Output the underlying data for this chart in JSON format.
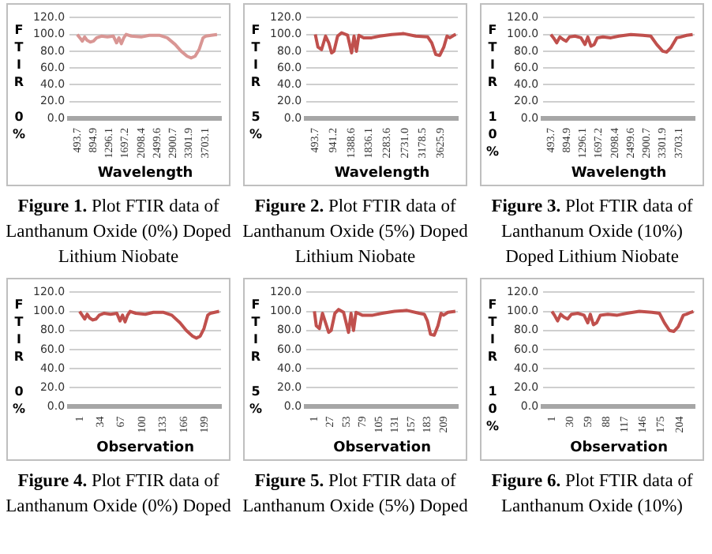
{
  "chart_data": [
    {
      "type": "line",
      "xlabel": "Wavelength",
      "ylabel": "FTIR 0%",
      "x": [
        493.7,
        560,
        620,
        680,
        740,
        820,
        900,
        980,
        1100,
        1250,
        1400,
        1480,
        1540,
        1600,
        1660,
        1720,
        1850,
        2100,
        2300,
        2550,
        2750,
        2950,
        3100,
        3250,
        3350,
        3450,
        3550,
        3650,
        3720,
        3850,
        4000
      ],
      "series": [
        {
          "color": "#d99694",
          "values": [
            100,
            96,
            92,
            97,
            93,
            91,
            92,
            96,
            98,
            97,
            98,
            90,
            96,
            89,
            96,
            100,
            98,
            97,
            99,
            99,
            96,
            88,
            80,
            74,
            72,
            74,
            82,
            96,
            98,
            99,
            100
          ]
        }
      ],
      "xlim": [
        300,
        4100
      ],
      "xticks": [
        {
          "value": 493.7,
          "label": "493.7"
        },
        {
          "value": 894.9,
          "label": "894.9"
        },
        {
          "value": 1296.1,
          "label": "1296.1"
        },
        {
          "value": 1697.2,
          "label": "1697.2"
        },
        {
          "value": 2098.4,
          "label": "2098.4"
        },
        {
          "value": 2499.6,
          "label": "2499.6"
        },
        {
          "value": 2900.7,
          "label": "2900.7"
        },
        {
          "value": 3301.9,
          "label": "3301.9"
        },
        {
          "value": 3703.1,
          "label": "3703.1"
        }
      ],
      "ylim": [
        0,
        120
      ],
      "yticks": [
        {
          "value": 0,
          "label": "0.0"
        },
        {
          "value": 20,
          "label": "20.0"
        },
        {
          "value": 40,
          "label": "40.0"
        },
        {
          "value": 60,
          "label": "60.0"
        },
        {
          "value": 80,
          "label": "80.0"
        },
        {
          "value": 100,
          "label": "100.0"
        },
        {
          "value": 120,
          "label": "120.0"
        }
      ],
      "grid": "y",
      "marker": "none",
      "line_style": "solid",
      "annotations": [
        "Figure 1.",
        "Plot FTIR data of Lanthanum Oxide (0%) Doped Lithium Niobate"
      ]
    },
    {
      "type": "line",
      "xlabel": "Wavelength",
      "ylabel": "FTIR 5%",
      "x": [
        493.7,
        560,
        650,
        750,
        830,
        900,
        960,
        1050,
        1150,
        1300,
        1400,
        1460,
        1520,
        1580,
        1700,
        1900,
        2100,
        2400,
        2700,
        3000,
        3300,
        3400,
        3500,
        3600,
        3700,
        3780,
        3850,
        3950,
        4000
      ],
      "series": [
        {
          "color": "#c0504d",
          "values": [
            100,
            85,
            82,
            98,
            90,
            78,
            80,
            98,
            102,
            99,
            78,
            98,
            80,
            99,
            96,
            96,
            98,
            100,
            101,
            98,
            97,
            90,
            76,
            75,
            85,
            98,
            96,
            99,
            100
          ]
        }
      ],
      "xlim": [
        270,
        4050
      ],
      "xticks": [
        {
          "value": 493.7,
          "label": "493.7"
        },
        {
          "value": 941.2,
          "label": "941.2"
        },
        {
          "value": 1388.6,
          "label": "1388.6"
        },
        {
          "value": 1836.1,
          "label": "1836.1"
        },
        {
          "value": 2283.6,
          "label": "2283.6"
        },
        {
          "value": 2731.0,
          "label": "2731.0"
        },
        {
          "value": 3178.5,
          "label": "3178.5"
        },
        {
          "value": 3625.9,
          "label": "3625.9"
        }
      ],
      "ylim": [
        0,
        120
      ],
      "yticks": [
        {
          "value": 0,
          "label": "0.0"
        },
        {
          "value": 20,
          "label": "20.0"
        },
        {
          "value": 40,
          "label": "40.0"
        },
        {
          "value": 60,
          "label": "60.0"
        },
        {
          "value": 80,
          "label": "80.0"
        },
        {
          "value": 100,
          "label": "100.0"
        },
        {
          "value": 120,
          "label": "120.0"
        }
      ],
      "grid": "y",
      "marker": "none",
      "line_style": "solid",
      "annotations": [
        "Figure 2.",
        "Plot FTIR data of Lanthanum Oxide (5%) Doped Lithium Niobate"
      ]
    },
    {
      "type": "line",
      "xlabel": "Wavelength",
      "ylabel": "FTIR 10%",
      "x": [
        493.7,
        560,
        640,
        720,
        800,
        880,
        960,
        1100,
        1250,
        1350,
        1420,
        1500,
        1580,
        1660,
        1800,
        2000,
        2200,
        2500,
        2800,
        3000,
        3150,
        3300,
        3400,
        3500,
        3650,
        3750,
        3900,
        4050
      ],
      "series": [
        {
          "color": "#c0504d",
          "values": [
            100,
            96,
            90,
            97,
            94,
            92,
            97,
            98,
            96,
            88,
            97,
            86,
            88,
            96,
            97,
            96,
            98,
            100,
            99,
            98,
            88,
            80,
            79,
            84,
            96,
            97,
            99,
            100
          ]
        }
      ],
      "xlim": [
        300,
        4100
      ],
      "xticks": [
        {
          "value": 493.7,
          "label": "493.7"
        },
        {
          "value": 894.9,
          "label": "894.9"
        },
        {
          "value": 1296.1,
          "label": "1296.1"
        },
        {
          "value": 1697.2,
          "label": "1697.2"
        },
        {
          "value": 2098.4,
          "label": "2098.4"
        },
        {
          "value": 2499.6,
          "label": "2499.6"
        },
        {
          "value": 2900.7,
          "label": "2900.7"
        },
        {
          "value": 3301.9,
          "label": "3301.9"
        },
        {
          "value": 3703.1,
          "label": "3703.1"
        }
      ],
      "ylim": [
        0,
        120
      ],
      "yticks": [
        {
          "value": 0,
          "label": "0.0"
        },
        {
          "value": 20,
          "label": "20.0"
        },
        {
          "value": 40,
          "label": "40.0"
        },
        {
          "value": 60,
          "label": "60.0"
        },
        {
          "value": 80,
          "label": "80.0"
        },
        {
          "value": 100,
          "label": "100.0"
        },
        {
          "value": 120,
          "label": "120.0"
        }
      ],
      "grid": "y",
      "marker": "none",
      "line_style": "solid",
      "annotations": [
        "Figure 3.",
        "Plot FTIR data of Lanthanum Oxide (10%) Doped Lithium Niobate"
      ]
    },
    {
      "type": "line",
      "xlabel": "Observation",
      "ylabel": "FTIR 0%",
      "x": [
        1,
        5,
        9,
        13,
        17,
        22,
        27,
        32,
        40,
        50,
        60,
        65,
        69,
        73,
        77,
        81,
        90,
        105,
        118,
        134,
        147,
        160,
        170,
        180,
        186,
        192,
        198,
        204,
        208,
        215,
        222
      ],
      "series": [
        {
          "color": "#c0504d",
          "values": [
            100,
            96,
            92,
            97,
            93,
            91,
            92,
            96,
            98,
            97,
            98,
            90,
            96,
            89,
            96,
            100,
            98,
            97,
            99,
            99,
            96,
            88,
            80,
            74,
            72,
            74,
            82,
            96,
            98,
            99,
            100
          ]
        }
      ],
      "xlim": [
        -15,
        225
      ],
      "xticks": [
        1,
        34,
        67,
        100,
        133,
        166,
        199
      ],
      "ylim": [
        0,
        120
      ],
      "yticks": [
        {
          "value": 0,
          "label": "0.0"
        },
        {
          "value": 20,
          "label": "20.0"
        },
        {
          "value": 40,
          "label": "40.0"
        },
        {
          "value": 60,
          "label": "60.0"
        },
        {
          "value": 80,
          "label": "80.0"
        },
        {
          "value": 100,
          "label": "100.0"
        },
        {
          "value": 120,
          "label": "120.0"
        }
      ],
      "grid": "y",
      "marker": "none",
      "line_style": "solid",
      "annotations": [
        "Figure 4.",
        "Plot FTIR data of Lanthanum Oxide (0%) Doped"
      ]
    },
    {
      "type": "line",
      "xlabel": "Observation",
      "ylabel": "FTIR 5%",
      "x": [
        1,
        4,
        9,
        14,
        18,
        24,
        28,
        34,
        40,
        48,
        56,
        60,
        64,
        68,
        78,
        95,
        110,
        130,
        150,
        170,
        178,
        183,
        188,
        194,
        200,
        205,
        209,
        216,
        228
      ],
      "series": [
        {
          "color": "#c0504d",
          "values": [
            100,
            85,
            82,
            98,
            90,
            78,
            80,
            98,
            102,
            99,
            78,
            98,
            80,
            99,
            96,
            96,
            98,
            100,
            101,
            98,
            97,
            90,
            76,
            75,
            85,
            98,
            96,
            99,
            100
          ]
        }
      ],
      "xlim": [
        -12,
        232
      ],
      "xticks": [
        1,
        27,
        53,
        79,
        105,
        131,
        157,
        183,
        209
      ],
      "ylim": [
        0,
        120
      ],
      "yticks": [
        {
          "value": 0,
          "label": "0.0"
        },
        {
          "value": 20,
          "label": "20.0"
        },
        {
          "value": 40,
          "label": "40.0"
        },
        {
          "value": 60,
          "label": "60.0"
        },
        {
          "value": 80,
          "label": "80.0"
        },
        {
          "value": 100,
          "label": "100.0"
        },
        {
          "value": 120,
          "label": "120.0"
        }
      ],
      "grid": "y",
      "marker": "none",
      "line_style": "solid",
      "annotations": [
        "Figure 5.",
        "Plot FTIR data of Lanthanum Oxide (5%) Doped"
      ]
    },
    {
      "type": "line",
      "xlabel": "Observation",
      "ylabel": "FTIR 10%",
      "x": [
        1,
        5,
        10,
        15,
        20,
        26,
        32,
        42,
        52,
        58,
        62,
        67,
        72,
        78,
        90,
        105,
        120,
        140,
        160,
        172,
        180,
        188,
        195,
        202,
        210,
        215,
        222,
        226
      ],
      "series": [
        {
          "color": "#c0504d",
          "values": [
            100,
            96,
            90,
            97,
            94,
            92,
            97,
            98,
            96,
            88,
            97,
            86,
            88,
            96,
            97,
            96,
            98,
            100,
            99,
            98,
            88,
            80,
            79,
            84,
            96,
            97,
            99,
            100
          ]
        }
      ],
      "xlim": [
        -13,
        228
      ],
      "xticks": [
        1,
        30,
        59,
        88,
        117,
        146,
        175,
        204
      ],
      "ylim": [
        0,
        120
      ],
      "yticks": [
        {
          "value": 0,
          "label": "0.0"
        },
        {
          "value": 20,
          "label": "20.0"
        },
        {
          "value": 40,
          "label": "40.0"
        },
        {
          "value": 60,
          "label": "60.0"
        },
        {
          "value": 80,
          "label": "80.0"
        },
        {
          "value": 100,
          "label": "100.0"
        },
        {
          "value": 120,
          "label": "120.0"
        }
      ],
      "grid": "y",
      "marker": "none",
      "line_style": "solid",
      "annotations": [
        "Figure 6.",
        "Plot FTIR data of Lanthanum Oxide (10%)"
      ]
    }
  ]
}
